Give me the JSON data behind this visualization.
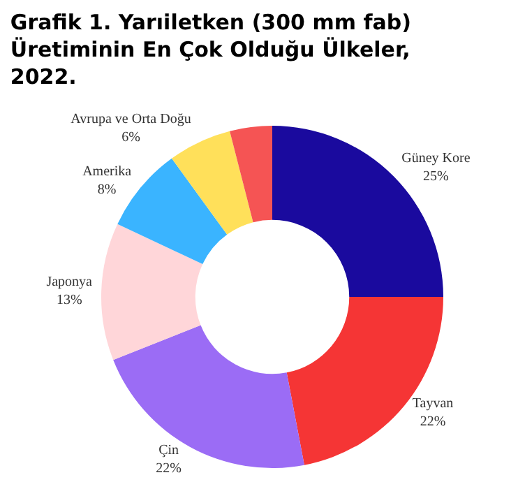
{
  "chart_data": {
    "type": "donut",
    "title": "Grafik 1. Yarıiletken (300 mm fab)\nÜretiminin En Çok Olduğu Ülkeler,\n2022.",
    "categories": [
      "Güney Kore",
      "Tayvan",
      "Çin",
      "Japonya",
      "Amerika",
      "Avrupa ve Orta Doğu",
      null
    ],
    "values": [
      25,
      22,
      22,
      13,
      8,
      6,
      4
    ],
    "value_labels": [
      "25%",
      "22%",
      "22%",
      "13%",
      "8%",
      "6%",
      null
    ],
    "colors": [
      "#1a0a9e",
      "#f53535",
      "#9b6cf5",
      "#ffd6d9",
      "#3ab4ff",
      "#ffe05a",
      "#f55454"
    ],
    "legend": false
  }
}
